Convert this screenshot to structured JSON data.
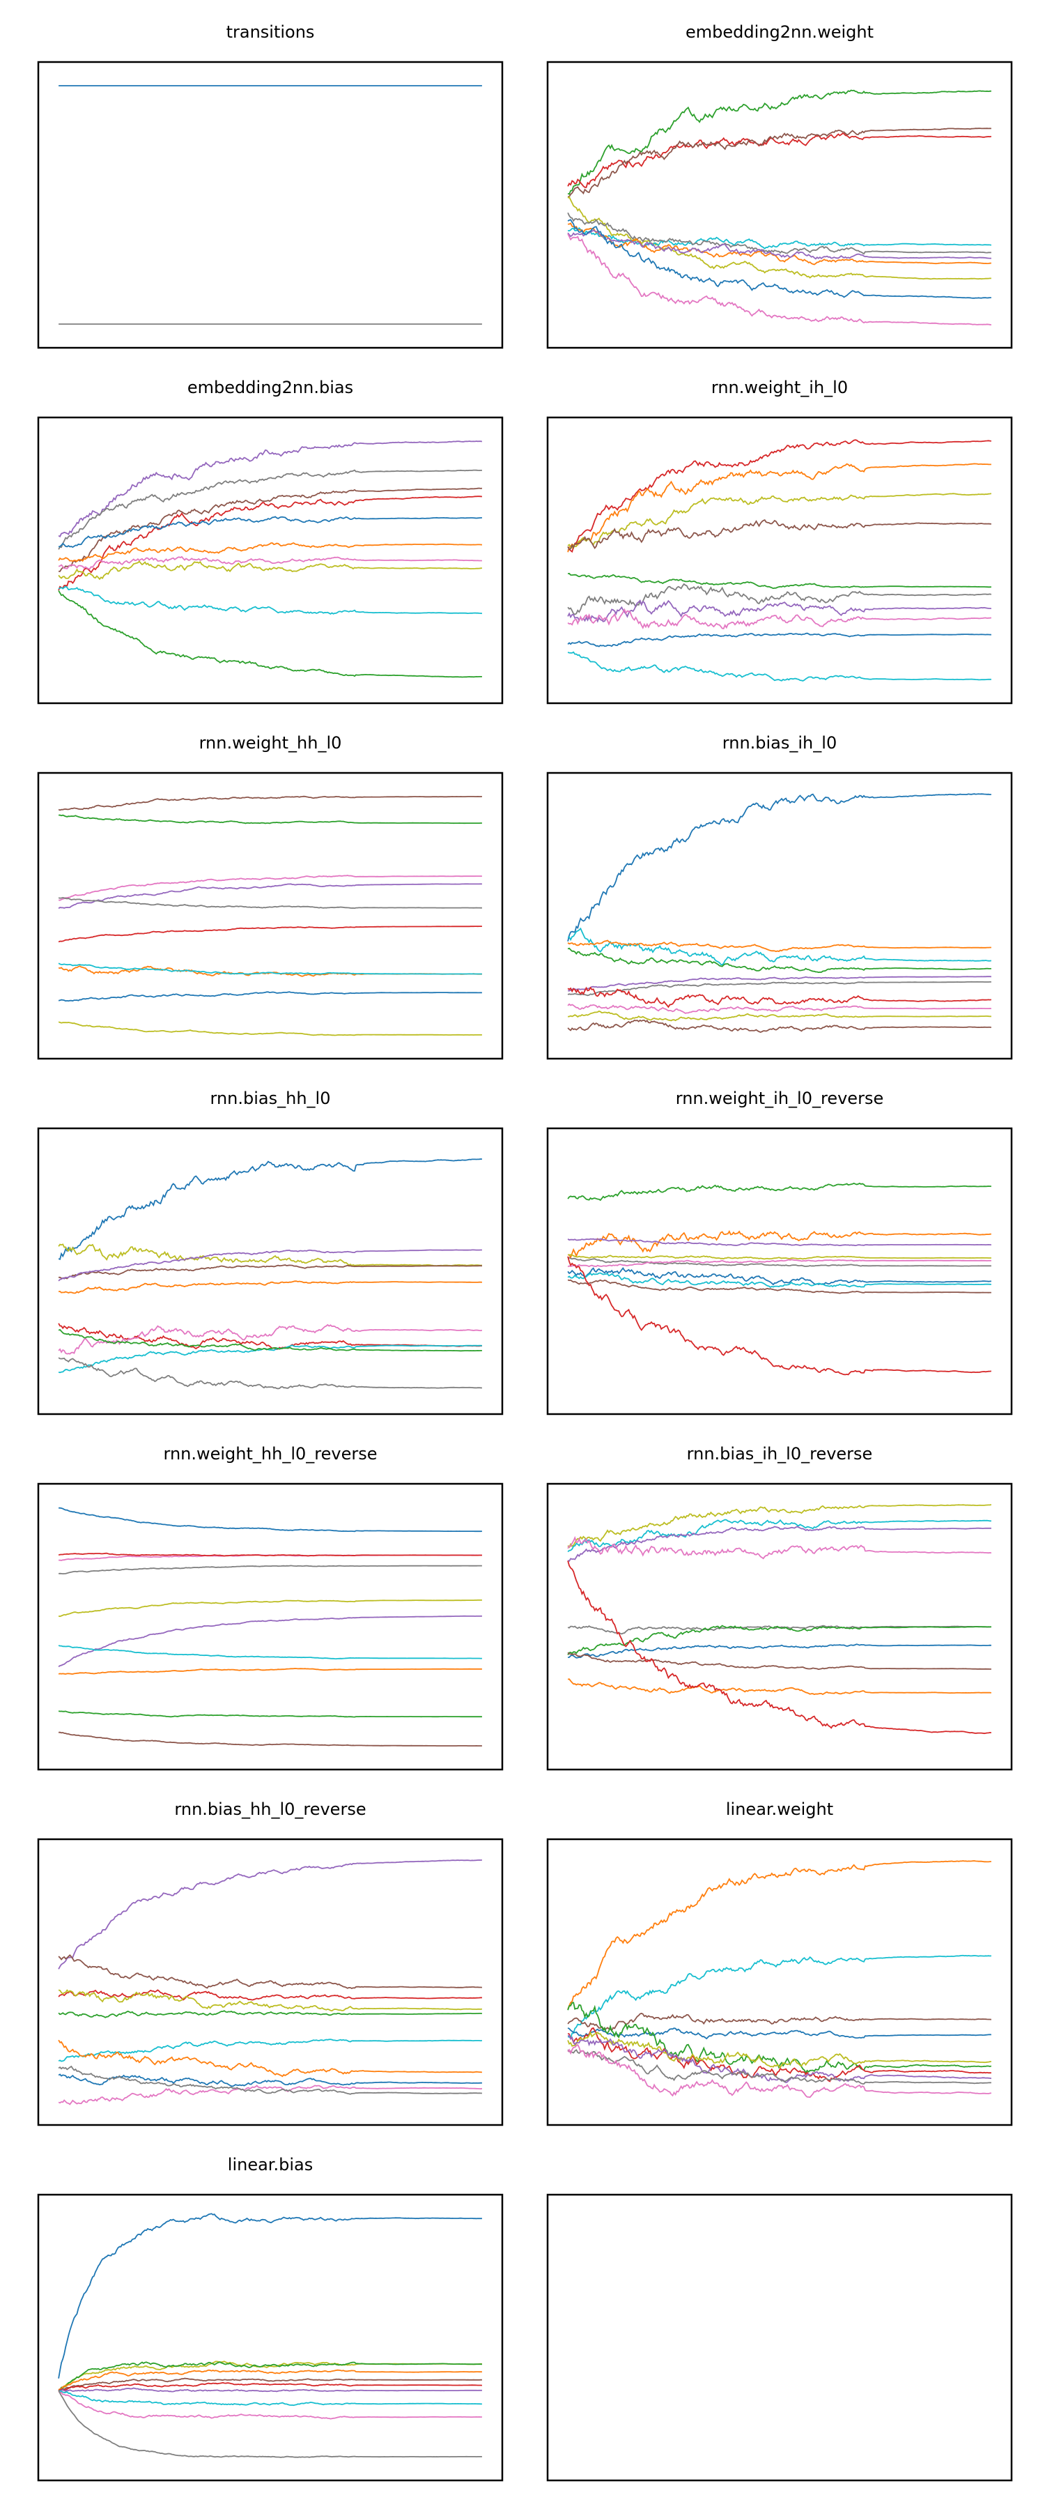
{
  "palette": [
    "#1f77b4",
    "#ff7f0e",
    "#2ca02c",
    "#d62728",
    "#9467bd",
    "#8c564b",
    "#e377c2",
    "#7f7f7f",
    "#bcbd22",
    "#17becf"
  ],
  "chart_data": [
    {
      "type": "line",
      "title": "transitions",
      "seed": 0,
      "series": [
        {
          "color": "#1f77b4",
          "start": 0.95,
          "end": 0.95,
          "noise": 0.0
        },
        {
          "color": "#7f7f7f",
          "start": 0.05,
          "end": 0.05,
          "noise": 0.0
        }
      ]
    },
    {
      "type": "line",
      "title": "embedding2nn.weight",
      "seed": 11,
      "series": [
        {
          "color": "#2ca02c",
          "start": 0.55,
          "end": 0.93,
          "noise": 0.03
        },
        {
          "color": "#d62728",
          "start": 0.58,
          "end": 0.76,
          "noise": 0.025
        },
        {
          "color": "#8c564b",
          "start": 0.52,
          "end": 0.79,
          "noise": 0.025
        },
        {
          "color": "#bcbd22",
          "start": 0.52,
          "end": 0.22,
          "noise": 0.02
        },
        {
          "color": "#17becf",
          "start": 0.4,
          "end": 0.35,
          "noise": 0.02
        },
        {
          "color": "#7f7f7f",
          "start": 0.47,
          "end": 0.32,
          "noise": 0.02
        },
        {
          "color": "#ff7f0e",
          "start": 0.43,
          "end": 0.28,
          "noise": 0.02
        },
        {
          "color": "#9467bd",
          "start": 0.4,
          "end": 0.3,
          "noise": 0.02
        },
        {
          "color": "#1f77b4",
          "start": 0.45,
          "end": 0.15,
          "noise": 0.025
        },
        {
          "color": "#e377c2",
          "start": 0.38,
          "end": 0.05,
          "noise": 0.025
        }
      ]
    },
    {
      "type": "line",
      "title": "embedding2nn.bias",
      "seed": 23,
      "series": [
        {
          "color": "#9467bd",
          "start": 0.6,
          "end": 0.95,
          "noise": 0.025
        },
        {
          "color": "#7f7f7f",
          "start": 0.55,
          "end": 0.84,
          "noise": 0.02
        },
        {
          "color": "#8c564b",
          "start": 0.45,
          "end": 0.77,
          "noise": 0.02
        },
        {
          "color": "#d62728",
          "start": 0.38,
          "end": 0.74,
          "noise": 0.025
        },
        {
          "color": "#1f77b4",
          "start": 0.55,
          "end": 0.66,
          "noise": 0.015
        },
        {
          "color": "#ff7f0e",
          "start": 0.5,
          "end": 0.56,
          "noise": 0.015
        },
        {
          "color": "#e377c2",
          "start": 0.48,
          "end": 0.5,
          "noise": 0.015
        },
        {
          "color": "#bcbd22",
          "start": 0.45,
          "end": 0.47,
          "noise": 0.02
        },
        {
          "color": "#17becf",
          "start": 0.4,
          "end": 0.3,
          "noise": 0.015
        },
        {
          "color": "#2ca02c",
          "start": 0.38,
          "end": 0.06,
          "noise": 0.015
        }
      ]
    },
    {
      "type": "line",
      "title": "rnn.weight_ih_l0",
      "seed": 37,
      "series": [
        {
          "color": "#d62728",
          "start": 0.55,
          "end": 0.95,
          "noise": 0.025
        },
        {
          "color": "#ff7f0e",
          "start": 0.52,
          "end": 0.86,
          "noise": 0.03
        },
        {
          "color": "#bcbd22",
          "start": 0.55,
          "end": 0.75,
          "noise": 0.025
        },
        {
          "color": "#8c564b",
          "start": 0.55,
          "end": 0.64,
          "noise": 0.03
        },
        {
          "color": "#2ca02c",
          "start": 0.45,
          "end": 0.4,
          "noise": 0.01
        },
        {
          "color": "#7f7f7f",
          "start": 0.33,
          "end": 0.37,
          "noise": 0.03
        },
        {
          "color": "#9467bd",
          "start": 0.3,
          "end": 0.32,
          "noise": 0.03
        },
        {
          "color": "#e377c2",
          "start": 0.25,
          "end": 0.28,
          "noise": 0.03
        },
        {
          "color": "#1f77b4",
          "start": 0.18,
          "end": 0.22,
          "noise": 0.01
        },
        {
          "color": "#17becf",
          "start": 0.15,
          "end": 0.05,
          "noise": 0.015
        }
      ]
    },
    {
      "type": "line",
      "title": "rnn.weight_hh_l0",
      "seed": 41,
      "series": [
        {
          "color": "#8c564b",
          "start": 0.9,
          "end": 0.95,
          "noise": 0.006
        },
        {
          "color": "#2ca02c",
          "start": 0.88,
          "end": 0.85,
          "noise": 0.005
        },
        {
          "color": "#e377c2",
          "start": 0.56,
          "end": 0.65,
          "noise": 0.006
        },
        {
          "color": "#9467bd",
          "start": 0.53,
          "end": 0.62,
          "noise": 0.006
        },
        {
          "color": "#7f7f7f",
          "start": 0.57,
          "end": 0.53,
          "noise": 0.005
        },
        {
          "color": "#d62728",
          "start": 0.4,
          "end": 0.46,
          "noise": 0.004
        },
        {
          "color": "#ff7f0e",
          "start": 0.3,
          "end": 0.28,
          "noise": 0.012
        },
        {
          "color": "#17becf",
          "start": 0.32,
          "end": 0.28,
          "noise": 0.005
        },
        {
          "color": "#1f77b4",
          "start": 0.18,
          "end": 0.21,
          "noise": 0.006
        },
        {
          "color": "#bcbd22",
          "start": 0.1,
          "end": 0.05,
          "noise": 0.004
        }
      ]
    },
    {
      "type": "line",
      "title": "rnn.bias_ih_l0",
      "seed": 53,
      "series": [
        {
          "color": "#1f77b4",
          "start": 0.4,
          "end": 0.96,
          "noise": 0.03
        },
        {
          "color": "#17becf",
          "start": 0.42,
          "end": 0.33,
          "noise": 0.025
        },
        {
          "color": "#ff7f0e",
          "start": 0.4,
          "end": 0.38,
          "noise": 0.01
        },
        {
          "color": "#2ca02c",
          "start": 0.38,
          "end": 0.3,
          "noise": 0.015
        },
        {
          "color": "#9467bd",
          "start": 0.22,
          "end": 0.27,
          "noise": 0.006
        },
        {
          "color": "#7f7f7f",
          "start": 0.2,
          "end": 0.25,
          "noise": 0.006
        },
        {
          "color": "#d62728",
          "start": 0.22,
          "end": 0.18,
          "noise": 0.025
        },
        {
          "color": "#e377c2",
          "start": 0.16,
          "end": 0.15,
          "noise": 0.012
        },
        {
          "color": "#bcbd22",
          "start": 0.12,
          "end": 0.12,
          "noise": 0.01
        },
        {
          "color": "#8c564b",
          "start": 0.08,
          "end": 0.08,
          "noise": 0.015
        }
      ]
    },
    {
      "type": "line",
      "title": "rnn.bias_hh_l0",
      "seed": 67,
      "series": [
        {
          "color": "#1f77b4",
          "start": 0.55,
          "end": 0.92,
          "noise": 0.03
        },
        {
          "color": "#bcbd22",
          "start": 0.6,
          "end": 0.52,
          "noise": 0.025
        },
        {
          "color": "#8c564b",
          "start": 0.48,
          "end": 0.52,
          "noise": 0.008
        },
        {
          "color": "#9467bd",
          "start": 0.46,
          "end": 0.58,
          "noise": 0.008
        },
        {
          "color": "#ff7f0e",
          "start": 0.42,
          "end": 0.46,
          "noise": 0.01
        },
        {
          "color": "#d62728",
          "start": 0.3,
          "end": 0.22,
          "noise": 0.02
        },
        {
          "color": "#e377c2",
          "start": 0.2,
          "end": 0.28,
          "noise": 0.025
        },
        {
          "color": "#17becf",
          "start": 0.12,
          "end": 0.22,
          "noise": 0.01
        },
        {
          "color": "#2ca02c",
          "start": 0.28,
          "end": 0.2,
          "noise": 0.01
        },
        {
          "color": "#7f7f7f",
          "start": 0.18,
          "end": 0.06,
          "noise": 0.015
        }
      ]
    },
    {
      "type": "line",
      "title": "rnn.weight_ih_l0_reverse",
      "seed": 71,
      "series": [
        {
          "color": "#2ca02c",
          "start": 0.78,
          "end": 0.82,
          "noise": 0.015
        },
        {
          "color": "#ff7f0e",
          "start": 0.55,
          "end": 0.64,
          "noise": 0.03
        },
        {
          "color": "#9467bd",
          "start": 0.62,
          "end": 0.6,
          "noise": 0.006
        },
        {
          "color": "#7f7f7f",
          "start": 0.55,
          "end": 0.52,
          "noise": 0.006
        },
        {
          "color": "#1f77b4",
          "start": 0.5,
          "end": 0.46,
          "noise": 0.02
        },
        {
          "color": "#17becf",
          "start": 0.48,
          "end": 0.45,
          "noise": 0.015
        },
        {
          "color": "#8c564b",
          "start": 0.47,
          "end": 0.42,
          "noise": 0.008
        },
        {
          "color": "#e377c2",
          "start": 0.52,
          "end": 0.54,
          "noise": 0.006
        },
        {
          "color": "#bcbd22",
          "start": 0.56,
          "end": 0.55,
          "noise": 0.006
        },
        {
          "color": "#d62728",
          "start": 0.55,
          "end": 0.12,
          "noise": 0.025
        }
      ]
    },
    {
      "type": "line",
      "title": "rnn.weight_hh_l0_reverse",
      "seed": 83,
      "series": [
        {
          "color": "#1f77b4",
          "start": 0.95,
          "end": 0.86,
          "noise": 0.004
        },
        {
          "color": "#e377c2",
          "start": 0.75,
          "end": 0.77,
          "noise": 0.003
        },
        {
          "color": "#d62728",
          "start": 0.77,
          "end": 0.77,
          "noise": 0.003
        },
        {
          "color": "#7f7f7f",
          "start": 0.7,
          "end": 0.73,
          "noise": 0.003
        },
        {
          "color": "#bcbd22",
          "start": 0.54,
          "end": 0.6,
          "noise": 0.004
        },
        {
          "color": "#9467bd",
          "start": 0.35,
          "end": 0.54,
          "noise": 0.005
        },
        {
          "color": "#17becf",
          "start": 0.43,
          "end": 0.38,
          "noise": 0.003
        },
        {
          "color": "#ff7f0e",
          "start": 0.32,
          "end": 0.34,
          "noise": 0.003
        },
        {
          "color": "#2ca02c",
          "start": 0.18,
          "end": 0.16,
          "noise": 0.003
        },
        {
          "color": "#8c564b",
          "start": 0.1,
          "end": 0.05,
          "noise": 0.003
        }
      ]
    },
    {
      "type": "line",
      "title": "rnn.bias_ih_l0_reverse",
      "seed": 97,
      "series": [
        {
          "color": "#bcbd22",
          "start": 0.8,
          "end": 0.96,
          "noise": 0.02
        },
        {
          "color": "#17becf",
          "start": 0.78,
          "end": 0.9,
          "noise": 0.02
        },
        {
          "color": "#9467bd",
          "start": 0.75,
          "end": 0.87,
          "noise": 0.015
        },
        {
          "color": "#e377c2",
          "start": 0.8,
          "end": 0.78,
          "noise": 0.03
        },
        {
          "color": "#7f7f7f",
          "start": 0.5,
          "end": 0.5,
          "noise": 0.01
        },
        {
          "color": "#2ca02c",
          "start": 0.4,
          "end": 0.5,
          "noise": 0.015
        },
        {
          "color": "#1f77b4",
          "start": 0.38,
          "end": 0.43,
          "noise": 0.01
        },
        {
          "color": "#8c564b",
          "start": 0.4,
          "end": 0.34,
          "noise": 0.008
        },
        {
          "color": "#ff7f0e",
          "start": 0.3,
          "end": 0.25,
          "noise": 0.012
        },
        {
          "color": "#d62728",
          "start": 0.75,
          "end": 0.1,
          "noise": 0.03
        }
      ]
    },
    {
      "type": "line",
      "title": "rnn.bias_hh_l0_reverse",
      "seed": 101,
      "series": [
        {
          "color": "#9467bd",
          "start": 0.55,
          "end": 0.96,
          "noise": 0.015
        },
        {
          "color": "#8c564b",
          "start": 0.6,
          "end": 0.48,
          "noise": 0.015
        },
        {
          "color": "#d62728",
          "start": 0.45,
          "end": 0.44,
          "noise": 0.015
        },
        {
          "color": "#bcbd22",
          "start": 0.48,
          "end": 0.4,
          "noise": 0.02
        },
        {
          "color": "#2ca02c",
          "start": 0.38,
          "end": 0.38,
          "noise": 0.01
        },
        {
          "color": "#17becf",
          "start": 0.2,
          "end": 0.28,
          "noise": 0.012
        },
        {
          "color": "#ff7f0e",
          "start": 0.28,
          "end": 0.16,
          "noise": 0.02
        },
        {
          "color": "#1f77b4",
          "start": 0.15,
          "end": 0.12,
          "noise": 0.015
        },
        {
          "color": "#e377c2",
          "start": 0.05,
          "end": 0.1,
          "noise": 0.015
        },
        {
          "color": "#7f7f7f",
          "start": 0.18,
          "end": 0.08,
          "noise": 0.012
        }
      ]
    },
    {
      "type": "line",
      "title": "linear.weight",
      "seed": 113,
      "series": [
        {
          "color": "#ff7f0e",
          "start": 0.4,
          "end": 0.96,
          "noise": 0.03
        },
        {
          "color": "#17becf",
          "start": 0.3,
          "end": 0.6,
          "noise": 0.025
        },
        {
          "color": "#8c564b",
          "start": 0.35,
          "end": 0.36,
          "noise": 0.02
        },
        {
          "color": "#1f77b4",
          "start": 0.32,
          "end": 0.3,
          "noise": 0.015
        },
        {
          "color": "#2ca02c",
          "start": 0.38,
          "end": 0.18,
          "noise": 0.045
        },
        {
          "color": "#d62728",
          "start": 0.3,
          "end": 0.16,
          "noise": 0.035
        },
        {
          "color": "#bcbd22",
          "start": 0.28,
          "end": 0.2,
          "noise": 0.03
        },
        {
          "color": "#9467bd",
          "start": 0.3,
          "end": 0.14,
          "noise": 0.03
        },
        {
          "color": "#7f7f7f",
          "start": 0.25,
          "end": 0.12,
          "noise": 0.02
        },
        {
          "color": "#e377c2",
          "start": 0.25,
          "end": 0.08,
          "noise": 0.03
        }
      ]
    },
    {
      "type": "line",
      "title": "linear.bias",
      "seed": 127,
      "series": [
        {
          "color": "#1f77b4",
          "start": 0.35,
          "end": 0.95,
          "noise": 0.015,
          "fast": true
        },
        {
          "color": "#bcbd22",
          "start": 0.3,
          "end": 0.4,
          "noise": 0.01,
          "fast": true
        },
        {
          "color": "#2ca02c",
          "start": 0.3,
          "end": 0.4,
          "noise": 0.01,
          "fast": true
        },
        {
          "color": "#ff7f0e",
          "start": 0.3,
          "end": 0.37,
          "noise": 0.008,
          "fast": true
        },
        {
          "color": "#8c564b",
          "start": 0.3,
          "end": 0.34,
          "noise": 0.006,
          "fast": true
        },
        {
          "color": "#d62728",
          "start": 0.3,
          "end": 0.32,
          "noise": 0.006,
          "fast": true
        },
        {
          "color": "#9467bd",
          "start": 0.3,
          "end": 0.3,
          "noise": 0.006,
          "fast": true
        },
        {
          "color": "#17becf",
          "start": 0.3,
          "end": 0.25,
          "noise": 0.008,
          "fast": true
        },
        {
          "color": "#e377c2",
          "start": 0.3,
          "end": 0.2,
          "noise": 0.008,
          "fast": true
        },
        {
          "color": "#7f7f7f",
          "start": 0.3,
          "end": 0.05,
          "noise": 0.004,
          "fast": true
        }
      ]
    },
    {
      "type": "line",
      "title": "",
      "seed": 0,
      "series": []
    }
  ]
}
